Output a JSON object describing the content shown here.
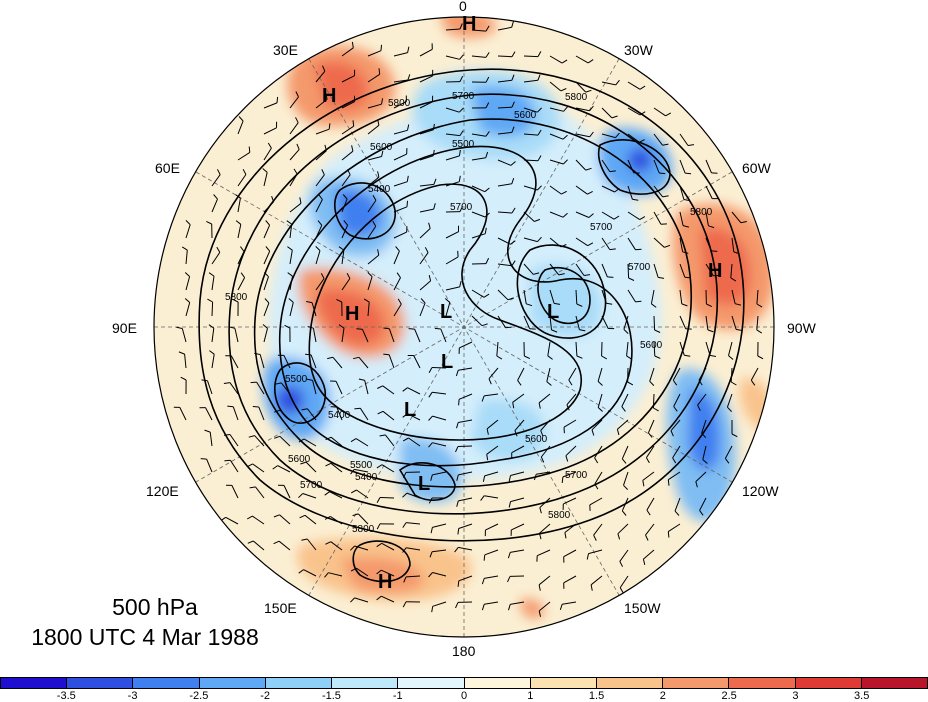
{
  "title": {
    "level": "500 hPa",
    "time": "1800 UTC 4 Mar 1988"
  },
  "longitude_labels": {
    "lon_0": "0",
    "lon_30w": "30W",
    "lon_60w": "60W",
    "lon_90w": "90W",
    "lon_120w": "120W",
    "lon_150w": "150W",
    "lon_180": "180",
    "lon_150e": "150E",
    "lon_120e": "120E",
    "lon_90e": "90E",
    "lon_60e": "60E",
    "lon_30e": "30E"
  },
  "pressure_centers": [
    {
      "label": "H"
    },
    {
      "label": "H"
    },
    {
      "label": "H"
    },
    {
      "label": "H"
    },
    {
      "label": "H"
    },
    {
      "label": "L"
    },
    {
      "label": "L"
    },
    {
      "label": "L"
    },
    {
      "label": "L"
    },
    {
      "label": "L"
    }
  ],
  "contour_labels": [
    "5800",
    "5700",
    "5600",
    "5500",
    "5400",
    "5700",
    "5800",
    "5500",
    "5400",
    "5700",
    "5600",
    "5700",
    "5600",
    "5800",
    "5800",
    "5500",
    "5400",
    "5600",
    "5700",
    "5800",
    "5600",
    "5700",
    "5800"
  ],
  "colorbar": {
    "colors": [
      "#1f0fd0",
      "#2e4fe0",
      "#3f7ff0",
      "#5fa8f5",
      "#8ed0f7",
      "#bfe9fb",
      "#e3f5fd",
      "#fdf5dc",
      "#fbe2b0",
      "#f9c38c",
      "#f4996c",
      "#ee6a4e",
      "#e03a35",
      "#b8142a"
    ],
    "tick_labels": [
      "-3.5",
      "-3",
      "-2.5",
      "-2",
      "-1.5",
      "-1",
      "0",
      "1",
      "1.5",
      "2",
      "2.5",
      "3",
      "3.5"
    ]
  }
}
